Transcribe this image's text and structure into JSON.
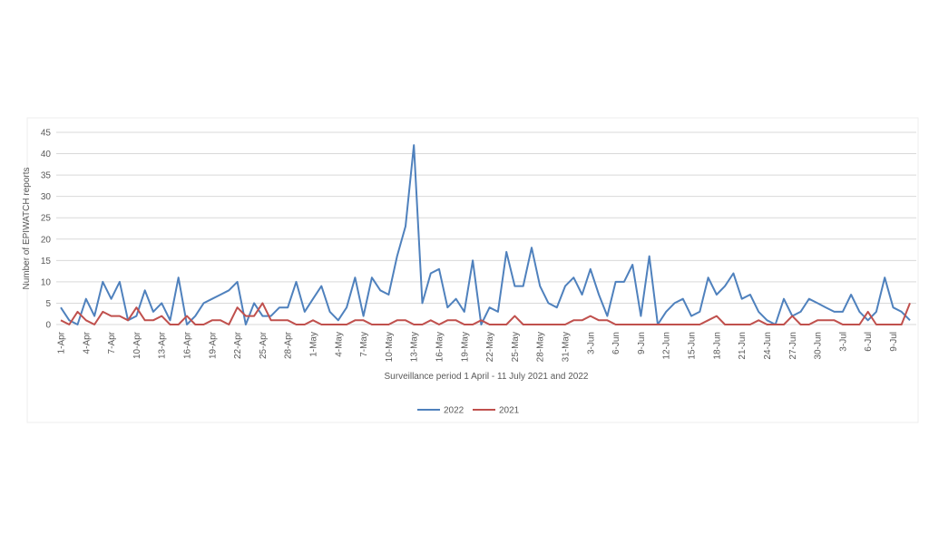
{
  "chart_data": {
    "type": "line",
    "y_label": "Number of EPIWATCH reports",
    "x_label": "Surveillance period 1 April - 11 July 2021 and 2022",
    "categories": [
      "1-Apr",
      null,
      null,
      "4-Apr",
      null,
      null,
      "7-Apr",
      null,
      null,
      "10-Apr",
      null,
      null,
      "13-Apr",
      null,
      null,
      "16-Apr",
      null,
      null,
      "19-Apr",
      null,
      null,
      "22-Apr",
      null,
      null,
      "25-Apr",
      null,
      null,
      "28-Apr",
      null,
      null,
      "1-May",
      null,
      null,
      "4-May",
      null,
      null,
      "7-May",
      null,
      null,
      "10-May",
      null,
      null,
      "13-May",
      null,
      null,
      "16-May",
      null,
      null,
      "19-May",
      null,
      null,
      "22-May",
      null,
      null,
      "25-May",
      null,
      null,
      "28-May",
      null,
      null,
      "31-May",
      null,
      null,
      "3-Jun",
      null,
      null,
      "6-Jun",
      null,
      null,
      "9-Jun",
      null,
      null,
      "12-Jun",
      null,
      null,
      "15-Jun",
      null,
      null,
      "18-Jun",
      null,
      null,
      "21-Jun",
      null,
      null,
      "24-Jun",
      null,
      null,
      "27-Jun",
      null,
      null,
      "30-Jun",
      null,
      null,
      "3-Jul",
      null,
      null,
      "6-Jul",
      null,
      null,
      "9-Jul",
      null,
      null
    ],
    "series": [
      {
        "name": "2022",
        "color": "#4f81bd",
        "values": [
          4,
          1,
          0,
          6,
          2,
          10,
          6,
          10,
          1,
          2,
          8,
          3,
          5,
          1,
          11,
          0,
          2,
          5,
          6,
          7,
          8,
          10,
          0,
          5,
          2,
          2,
          4,
          4,
          10,
          3,
          6,
          9,
          3,
          1,
          4,
          11,
          2,
          11,
          8,
          7,
          16,
          23,
          42,
          5,
          12,
          13,
          4,
          6,
          3,
          15,
          0,
          4,
          3,
          17,
          9,
          9,
          18,
          9,
          5,
          4,
          9,
          11,
          7,
          13,
          7,
          2,
          10,
          10,
          14,
          2,
          16,
          0,
          3,
          5,
          6,
          2,
          3,
          11,
          7,
          9,
          12,
          6,
          7,
          3,
          1,
          0,
          6,
          2,
          3,
          6,
          5,
          4,
          3,
          3,
          7,
          3,
          1,
          3,
          11,
          4,
          3,
          1
        ]
      },
      {
        "name": "2021",
        "color": "#c0504d",
        "values": [
          1,
          0,
          3,
          1,
          0,
          3,
          2,
          2,
          1,
          4,
          1,
          1,
          2,
          0,
          0,
          2,
          0,
          0,
          1,
          1,
          0,
          4,
          2,
          2,
          5,
          1,
          1,
          1,
          0,
          0,
          1,
          0,
          0,
          0,
          0,
          1,
          1,
          0,
          0,
          0,
          1,
          1,
          0,
          0,
          1,
          0,
          1,
          1,
          0,
          0,
          1,
          0,
          0,
          0,
          2,
          0,
          0,
          0,
          0,
          0,
          0,
          1,
          1,
          2,
          1,
          1,
          0,
          0,
          0,
          0,
          0,
          0,
          0,
          0,
          0,
          0,
          0,
          1,
          2,
          0,
          0,
          0,
          0,
          1,
          0,
          0,
          0,
          2,
          0,
          0,
          1,
          1,
          1,
          0,
          0,
          0,
          3,
          0,
          0,
          0,
          0,
          5
        ]
      }
    ],
    "ylim": [
      0,
      45
    ],
    "yticks": [
      0,
      5,
      10,
      15,
      20,
      25,
      30,
      35,
      40,
      45
    ],
    "grid": true,
    "legend": "bottom"
  }
}
